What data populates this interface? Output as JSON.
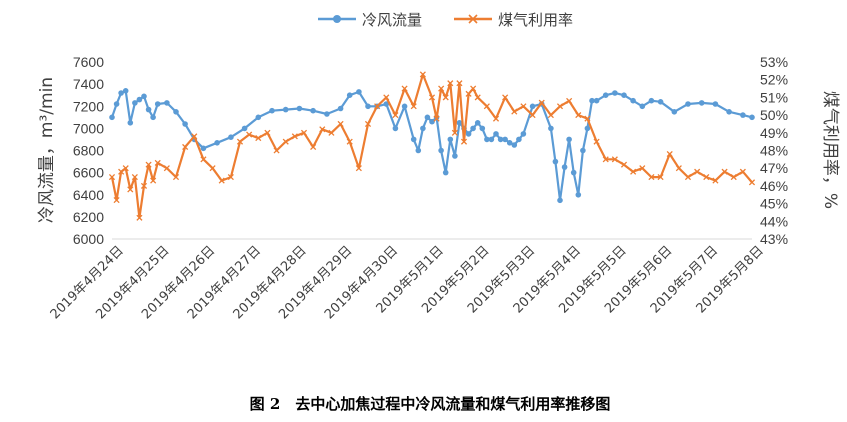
{
  "caption": "图 2　去中心加焦过程中冷风流量和煤气利用率推移图",
  "chart_data": {
    "type": "line",
    "xlabel": "",
    "ylabel": "冷风流量，m³/min",
    "y2label": "煤气利用率，%",
    "ylim": [
      6000,
      7600
    ],
    "y2lim": [
      43,
      53
    ],
    "y_ticks": [
      "6000",
      "6200",
      "6400",
      "6600",
      "6800",
      "7000",
      "7200",
      "7400",
      "7600"
    ],
    "y2_ticks": [
      "43%",
      "44%",
      "45%",
      "46%",
      "47%",
      "48%",
      "49%",
      "50%",
      "51%",
      "52%",
      "53%"
    ],
    "categories": [
      "2019年4月24日",
      "2019年4月25日",
      "2019年4月26日",
      "2019年4月27日",
      "2019年4月28日",
      "2019年4月29日",
      "2019年4月30日",
      "2019年5月1日",
      "2019年5月2日",
      "2019年5月3日",
      "2019年5月4日",
      "2019年5月5日",
      "2019年5月6日",
      "2019年5月7日",
      "2019年5月8日"
    ],
    "legend": "top-center",
    "grid": false,
    "series": [
      {
        "name": "冷风流量",
        "axis": "left",
        "color": "#5B9BD5",
        "marker": "circle",
        "x": [
          0,
          0.1,
          0.2,
          0.3,
          0.4,
          0.5,
          0.6,
          0.7,
          0.8,
          0.9,
          1.0,
          1.2,
          1.4,
          1.6,
          1.8,
          2.0,
          2.3,
          2.6,
          2.9,
          3.2,
          3.5,
          3.8,
          4.1,
          4.4,
          4.7,
          5.0,
          5.2,
          5.4,
          5.6,
          5.8,
          6.0,
          6.2,
          6.4,
          6.6,
          6.7,
          6.8,
          6.9,
          7.0,
          7.1,
          7.2,
          7.3,
          7.4,
          7.5,
          7.6,
          7.7,
          7.8,
          7.9,
          8.0,
          8.1,
          8.2,
          8.3,
          8.4,
          8.5,
          8.6,
          8.7,
          8.8,
          8.9,
          9.0,
          9.2,
          9.4,
          9.6,
          9.7,
          9.8,
          9.9,
          10.0,
          10.1,
          10.2,
          10.3,
          10.4,
          10.5,
          10.6,
          10.8,
          11.0,
          11.2,
          11.4,
          11.6,
          11.8,
          12.0,
          12.3,
          12.6,
          12.9,
          13.2,
          13.5,
          13.8,
          14.0
        ],
        "values": [
          7100,
          7220,
          7320,
          7340,
          7050,
          7230,
          7260,
          7290,
          7170,
          7100,
          7220,
          7230,
          7150,
          7040,
          6900,
          6820,
          6870,
          6920,
          7000,
          7100,
          7160,
          7170,
          7180,
          7160,
          7130,
          7180,
          7300,
          7330,
          7200,
          7200,
          7220,
          7000,
          7200,
          6900,
          6800,
          7000,
          7100,
          7060,
          7100,
          6800,
          6600,
          6900,
          6750,
          7050,
          7000,
          6950,
          7000,
          7050,
          7000,
          6900,
          6900,
          6950,
          6900,
          6900,
          6870,
          6850,
          6900,
          6950,
          7200,
          7220,
          7000,
          6700,
          6350,
          6650,
          6900,
          6600,
          6400,
          6800,
          7000,
          7250,
          7250,
          7300,
          7320,
          7300,
          7250,
          7200,
          7250,
          7240,
          7150,
          7220,
          7230,
          7220,
          7150,
          7120,
          7100
        ]
      },
      {
        "name": "煤气利用率",
        "axis": "right",
        "color": "#ED7D31",
        "marker": "x",
        "x": [
          0,
          0.1,
          0.2,
          0.3,
          0.4,
          0.5,
          0.6,
          0.7,
          0.8,
          0.9,
          1.0,
          1.2,
          1.4,
          1.6,
          1.8,
          2.0,
          2.2,
          2.4,
          2.6,
          2.8,
          3.0,
          3.2,
          3.4,
          3.6,
          3.8,
          4.0,
          4.2,
          4.4,
          4.6,
          4.8,
          5.0,
          5.2,
          5.4,
          5.6,
          5.8,
          6.0,
          6.2,
          6.4,
          6.6,
          6.8,
          7.0,
          7.1,
          7.2,
          7.3,
          7.4,
          7.5,
          7.6,
          7.7,
          7.8,
          7.9,
          8.0,
          8.2,
          8.4,
          8.6,
          8.8,
          9.0,
          9.2,
          9.4,
          9.6,
          9.8,
          10.0,
          10.2,
          10.4,
          10.6,
          10.8,
          11.0,
          11.2,
          11.4,
          11.6,
          11.8,
          12.0,
          12.2,
          12.4,
          12.6,
          12.8,
          13.0,
          13.2,
          13.4,
          13.6,
          13.8,
          14.0
        ],
        "values": [
          46.5,
          45.2,
          46.8,
          47.0,
          45.8,
          46.5,
          44.2,
          46.0,
          47.2,
          46.3,
          47.3,
          47.0,
          46.5,
          48.2,
          48.8,
          47.5,
          47.0,
          46.3,
          46.5,
          48.5,
          48.9,
          48.7,
          49.0,
          48.0,
          48.5,
          48.8,
          49.0,
          48.2,
          49.2,
          49.0,
          49.5,
          48.5,
          47.0,
          49.5,
          50.5,
          51.0,
          50.0,
          51.5,
          50.5,
          52.3,
          51.0,
          49.8,
          51.5,
          51.0,
          51.8,
          49.0,
          51.8,
          48.5,
          51.2,
          51.5,
          51.0,
          50.5,
          49.8,
          51.0,
          50.2,
          50.5,
          50.0,
          50.7,
          50.0,
          50.5,
          50.8,
          50.0,
          49.8,
          48.5,
          47.5,
          47.5,
          47.2,
          46.8,
          47.0,
          46.5,
          46.5,
          47.8,
          47.0,
          46.5,
          46.8,
          46.5,
          46.3,
          46.8,
          46.5,
          46.8,
          46.2
        ]
      }
    ]
  }
}
